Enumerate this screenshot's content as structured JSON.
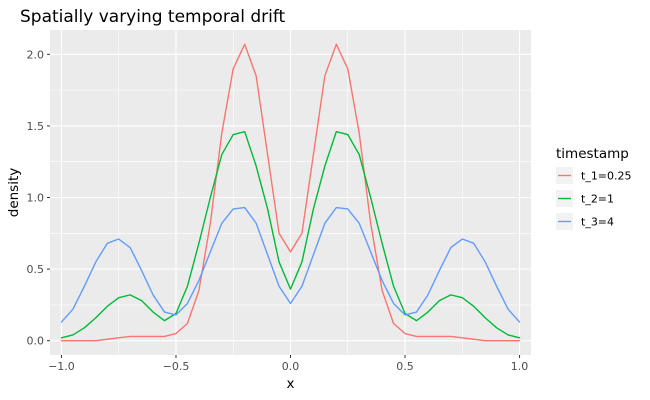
{
  "chart_data": {
    "type": "line",
    "title": "Spatially varying temporal drift",
    "xlabel": "x",
    "ylabel": "density",
    "xlim": [
      -1.05,
      1.05
    ],
    "ylim": [
      -0.1,
      2.17
    ],
    "x_ticks": [
      -1.0,
      -0.5,
      0.0,
      0.5,
      1.0
    ],
    "x_tick_labels": [
      "−1.0",
      "−0.5",
      "0.0",
      "0.5",
      "1.0"
    ],
    "y_ticks": [
      0.0,
      0.5,
      1.0,
      1.5,
      2.0
    ],
    "y_tick_labels": [
      "0.0",
      "0.5",
      "1.0",
      "1.5",
      "2.0"
    ],
    "grid": true,
    "legend": {
      "title": "timestamp",
      "position": "right"
    },
    "x": [
      -1.0,
      -0.95,
      -0.9,
      -0.85,
      -0.8,
      -0.75,
      -0.7,
      -0.65,
      -0.6,
      -0.55,
      -0.5,
      -0.45,
      -0.4,
      -0.35,
      -0.3,
      -0.25,
      -0.2,
      -0.15,
      -0.1,
      -0.05,
      0.0,
      0.05,
      0.1,
      0.15,
      0.2,
      0.25,
      0.3,
      0.35,
      0.4,
      0.45,
      0.5,
      0.55,
      0.6,
      0.65,
      0.7,
      0.75,
      0.8,
      0.85,
      0.9,
      0.95,
      1.0
    ],
    "series": [
      {
        "name": "t_1=0.25",
        "color": "#F8766D",
        "values": [
          0.0,
          0.0,
          0.0,
          0.0,
          0.01,
          0.02,
          0.03,
          0.03,
          0.03,
          0.03,
          0.05,
          0.12,
          0.35,
          0.82,
          1.45,
          1.9,
          2.07,
          1.85,
          1.3,
          0.75,
          0.62,
          0.75,
          1.3,
          1.85,
          2.07,
          1.9,
          1.45,
          0.82,
          0.35,
          0.12,
          0.05,
          0.03,
          0.03,
          0.03,
          0.03,
          0.02,
          0.01,
          0.0,
          0.0,
          0.0,
          0.0
        ]
      },
      {
        "name": "t_2=1",
        "color": "#00BA38",
        "values": [
          0.02,
          0.04,
          0.09,
          0.16,
          0.24,
          0.3,
          0.32,
          0.28,
          0.2,
          0.14,
          0.19,
          0.38,
          0.68,
          1.0,
          1.3,
          1.44,
          1.46,
          1.22,
          0.92,
          0.55,
          0.36,
          0.55,
          0.92,
          1.22,
          1.46,
          1.44,
          1.3,
          1.0,
          0.68,
          0.38,
          0.19,
          0.14,
          0.2,
          0.28,
          0.32,
          0.3,
          0.24,
          0.16,
          0.09,
          0.04,
          0.02
        ]
      },
      {
        "name": "t_3=4",
        "color": "#619CFF",
        "values": [
          0.13,
          0.22,
          0.38,
          0.55,
          0.68,
          0.71,
          0.65,
          0.49,
          0.32,
          0.2,
          0.18,
          0.26,
          0.42,
          0.62,
          0.82,
          0.92,
          0.93,
          0.82,
          0.6,
          0.38,
          0.26,
          0.38,
          0.6,
          0.82,
          0.93,
          0.92,
          0.82,
          0.62,
          0.42,
          0.26,
          0.18,
          0.2,
          0.32,
          0.49,
          0.65,
          0.71,
          0.68,
          0.55,
          0.38,
          0.22,
          0.13
        ]
      }
    ]
  }
}
